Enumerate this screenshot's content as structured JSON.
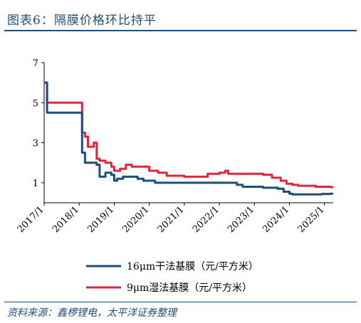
{
  "header": {
    "title": "图表6：隔膜价格环比持平"
  },
  "footer": {
    "source": "资料来源：鑫椤锂电，太平洋证券整理"
  },
  "chart_data": {
    "type": "line",
    "title": "",
    "xlabel": "",
    "ylabel": "",
    "ylim": [
      0,
      7
    ],
    "yticks": [
      1,
      3,
      5,
      7
    ],
    "xticks": [
      "2017/1",
      "2018/1",
      "2019/1",
      "2020/1",
      "2021/1",
      "2022/1",
      "2023/1",
      "2024/1",
      "2025/1"
    ],
    "grid": false,
    "legend": "bottom",
    "series": [
      {
        "name": "16μm干法基膜（元/平方米）",
        "color": "#1f4e79",
        "points": [
          [
            "2017-01",
            6.0
          ],
          [
            "2017-02",
            4.5
          ],
          [
            "2017-06",
            4.5
          ],
          [
            "2017-10",
            4.5
          ],
          [
            "2018-01",
            4.5
          ],
          [
            "2018-02",
            2.5
          ],
          [
            "2018-03",
            2.0
          ],
          [
            "2018-06",
            2.0
          ],
          [
            "2018-07",
            1.9
          ],
          [
            "2018-08",
            1.3
          ],
          [
            "2018-09",
            1.3
          ],
          [
            "2018-10",
            1.5
          ],
          [
            "2018-12",
            1.4
          ],
          [
            "2019-01",
            1.1
          ],
          [
            "2019-02",
            1.2
          ],
          [
            "2019-04",
            1.3
          ],
          [
            "2019-09",
            1.2
          ],
          [
            "2019-11",
            1.1
          ],
          [
            "2020-03",
            1.0
          ],
          [
            "2020-06",
            1.0
          ],
          [
            "2021-01",
            1.0
          ],
          [
            "2022-01",
            1.0
          ],
          [
            "2022-06",
            1.0
          ],
          [
            "2022-07",
            0.9
          ],
          [
            "2022-09",
            0.8
          ],
          [
            "2023-01",
            0.8
          ],
          [
            "2023-04",
            0.75
          ],
          [
            "2023-09",
            0.7
          ],
          [
            "2023-11",
            0.55
          ],
          [
            "2024-01",
            0.45
          ],
          [
            "2024-02",
            0.42
          ],
          [
            "2024-06",
            0.42
          ],
          [
            "2024-10",
            0.42
          ],
          [
            "2024-12",
            0.44
          ],
          [
            "2025-03",
            0.45
          ]
        ]
      },
      {
        "name": "9μm湿法基膜（元/平方米）",
        "color": "#e0263c",
        "points": [
          [
            "2017-01",
            6.0
          ],
          [
            "2017-02",
            5.0
          ],
          [
            "2017-06",
            5.0
          ],
          [
            "2017-10",
            5.0
          ],
          [
            "2018-01",
            5.0
          ],
          [
            "2018-02",
            3.5
          ],
          [
            "2018-03",
            3.3
          ],
          [
            "2018-04",
            2.8
          ],
          [
            "2018-05",
            2.8
          ],
          [
            "2018-06",
            3.0
          ],
          [
            "2018-07",
            2.2
          ],
          [
            "2018-08",
            2.1
          ],
          [
            "2018-10",
            2.0
          ],
          [
            "2018-12",
            1.8
          ],
          [
            "2019-01",
            1.6
          ],
          [
            "2019-03",
            1.7
          ],
          [
            "2019-05",
            1.9
          ],
          [
            "2019-07",
            1.8
          ],
          [
            "2019-10",
            1.8
          ],
          [
            "2020-01",
            1.6
          ],
          [
            "2020-04",
            1.5
          ],
          [
            "2020-07",
            1.35
          ],
          [
            "2021-01",
            1.3
          ],
          [
            "2021-06",
            1.3
          ],
          [
            "2021-09",
            1.45
          ],
          [
            "2022-01",
            1.5
          ],
          [
            "2022-03",
            1.6
          ],
          [
            "2022-04",
            1.45
          ],
          [
            "2022-06",
            1.45
          ],
          [
            "2023-01",
            1.45
          ],
          [
            "2023-04",
            1.4
          ],
          [
            "2023-07",
            1.25
          ],
          [
            "2023-10",
            1.1
          ],
          [
            "2023-12",
            0.95
          ],
          [
            "2024-02",
            0.9
          ],
          [
            "2024-04",
            0.85
          ],
          [
            "2024-08",
            0.85
          ],
          [
            "2024-10",
            0.8
          ],
          [
            "2025-03",
            0.78
          ]
        ]
      }
    ]
  }
}
